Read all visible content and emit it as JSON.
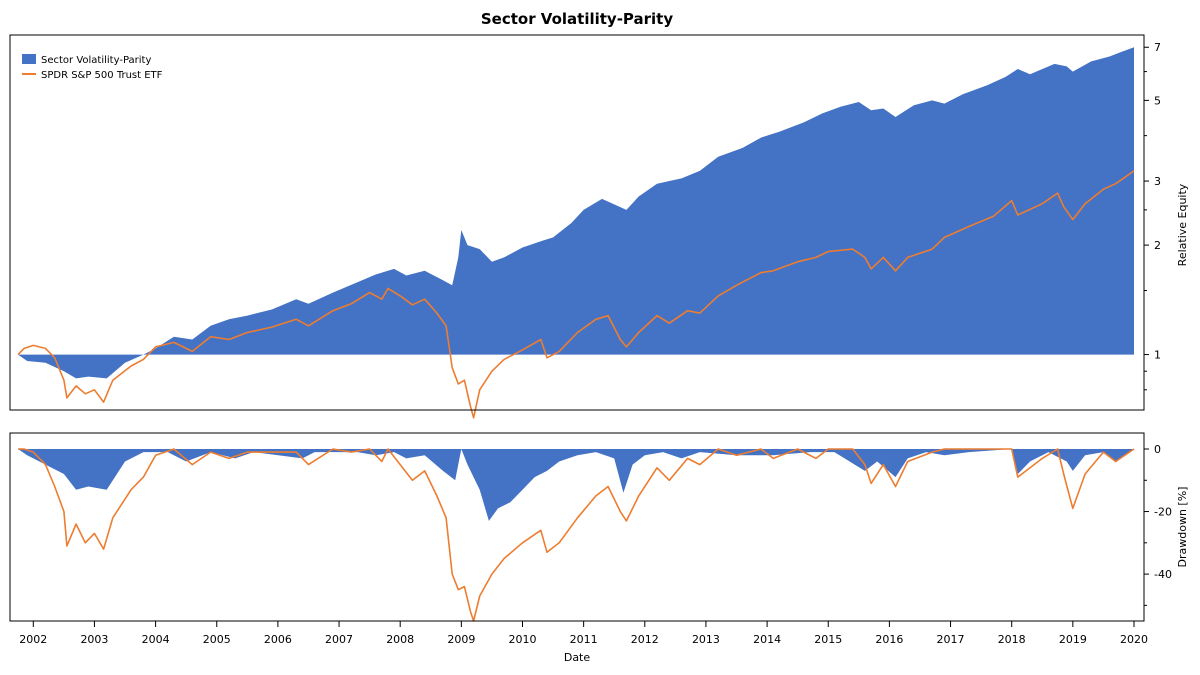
{
  "chart_data": {
    "type": "area",
    "title": "Sector Volatility-Parity",
    "xlabel": "Date",
    "x_ticks": [
      "2002",
      "2003",
      "2004",
      "2005",
      "2006",
      "2007",
      "2008",
      "2009",
      "2010",
      "2011",
      "2012",
      "2013",
      "2014",
      "2015",
      "2016",
      "2017",
      "2018",
      "2019",
      "2020"
    ],
    "x_range": [
      2001.75,
      2020.0
    ],
    "panels": [
      {
        "id": "equity",
        "ylabel": "Relative Equity",
        "yscale": "log",
        "ylim": [
          0.75,
          7.1
        ],
        "y_ticks": [
          "1",
          "2",
          "3",
          "5",
          "7"
        ],
        "baseline": 1
      },
      {
        "id": "drawdown",
        "ylabel": "Drawdown [%]",
        "yscale": "linear",
        "ylim": [
          -55,
          0
        ],
        "y_ticks": [
          "0",
          "-20",
          "-40"
        ],
        "baseline": 0
      }
    ],
    "legend": {
      "position": "top-left"
    },
    "series": [
      {
        "name": "Sector Volatility-Parity",
        "style": "area",
        "color": "#4472C4",
        "equity": [
          [
            2001.75,
            1.0
          ],
          [
            2001.9,
            0.96
          ],
          [
            2002.2,
            0.95
          ],
          [
            2002.5,
            0.9
          ],
          [
            2002.7,
            0.86
          ],
          [
            2002.9,
            0.87
          ],
          [
            2003.2,
            0.86
          ],
          [
            2003.5,
            0.95
          ],
          [
            2003.8,
            1.0
          ],
          [
            2004.0,
            1.04
          ],
          [
            2004.3,
            1.12
          ],
          [
            2004.6,
            1.1
          ],
          [
            2004.9,
            1.2
          ],
          [
            2005.2,
            1.25
          ],
          [
            2005.5,
            1.28
          ],
          [
            2005.9,
            1.33
          ],
          [
            2006.3,
            1.42
          ],
          [
            2006.5,
            1.38
          ],
          [
            2006.9,
            1.48
          ],
          [
            2007.3,
            1.58
          ],
          [
            2007.6,
            1.66
          ],
          [
            2007.9,
            1.72
          ],
          [
            2008.1,
            1.65
          ],
          [
            2008.4,
            1.7
          ],
          [
            2008.7,
            1.6
          ],
          [
            2008.85,
            1.55
          ],
          [
            2008.95,
            1.85
          ],
          [
            2009.0,
            2.2
          ],
          [
            2009.1,
            2.0
          ],
          [
            2009.3,
            1.95
          ],
          [
            2009.5,
            1.8
          ],
          [
            2009.7,
            1.85
          ],
          [
            2010.0,
            1.97
          ],
          [
            2010.3,
            2.05
          ],
          [
            2010.5,
            2.1
          ],
          [
            2010.8,
            2.3
          ],
          [
            2011.0,
            2.5
          ],
          [
            2011.3,
            2.68
          ],
          [
            2011.7,
            2.5
          ],
          [
            2011.9,
            2.72
          ],
          [
            2012.2,
            2.95
          ],
          [
            2012.6,
            3.05
          ],
          [
            2012.9,
            3.2
          ],
          [
            2013.2,
            3.5
          ],
          [
            2013.6,
            3.7
          ],
          [
            2013.9,
            3.95
          ],
          [
            2014.2,
            4.1
          ],
          [
            2014.6,
            4.35
          ],
          [
            2014.9,
            4.6
          ],
          [
            2015.2,
            4.8
          ],
          [
            2015.5,
            4.95
          ],
          [
            2015.7,
            4.7
          ],
          [
            2015.9,
            4.75
          ],
          [
            2016.1,
            4.5
          ],
          [
            2016.4,
            4.85
          ],
          [
            2016.7,
            5.0
          ],
          [
            2016.9,
            4.9
          ],
          [
            2017.2,
            5.2
          ],
          [
            2017.6,
            5.5
          ],
          [
            2017.9,
            5.8
          ],
          [
            2018.1,
            6.1
          ],
          [
            2018.3,
            5.9
          ],
          [
            2018.7,
            6.3
          ],
          [
            2018.9,
            6.2
          ],
          [
            2019.0,
            6.0
          ],
          [
            2019.3,
            6.4
          ],
          [
            2019.6,
            6.6
          ],
          [
            2019.8,
            6.8
          ],
          [
            2020.0,
            7.0
          ]
        ],
        "drawdown": [
          [
            2001.75,
            0
          ],
          [
            2001.9,
            -2
          ],
          [
            2002.2,
            -5
          ],
          [
            2002.5,
            -8
          ],
          [
            2002.7,
            -13
          ],
          [
            2002.9,
            -12
          ],
          [
            2003.2,
            -13
          ],
          [
            2003.5,
            -4
          ],
          [
            2003.8,
            -1
          ],
          [
            2004.2,
            -1
          ],
          [
            2004.5,
            -4
          ],
          [
            2004.9,
            -1
          ],
          [
            2005.3,
            -3
          ],
          [
            2005.6,
            -1
          ],
          [
            2006.4,
            -3
          ],
          [
            2006.6,
            -1
          ],
          [
            2007.3,
            -1
          ],
          [
            2007.6,
            -2
          ],
          [
            2007.9,
            -1
          ],
          [
            2008.1,
            -3
          ],
          [
            2008.4,
            -2
          ],
          [
            2008.7,
            -7
          ],
          [
            2008.9,
            -10
          ],
          [
            2009.0,
            0
          ],
          [
            2009.1,
            -5
          ],
          [
            2009.3,
            -13
          ],
          [
            2009.45,
            -23
          ],
          [
            2009.6,
            -19
          ],
          [
            2009.8,
            -17
          ],
          [
            2010.0,
            -13
          ],
          [
            2010.2,
            -9
          ],
          [
            2010.4,
            -7
          ],
          [
            2010.6,
            -4
          ],
          [
            2010.9,
            -2
          ],
          [
            2011.2,
            -1
          ],
          [
            2011.5,
            -3
          ],
          [
            2011.65,
            -14
          ],
          [
            2011.8,
            -5
          ],
          [
            2012.0,
            -2
          ],
          [
            2012.3,
            -1
          ],
          [
            2012.6,
            -3
          ],
          [
            2012.9,
            -1
          ],
          [
            2013.5,
            -2
          ],
          [
            2014.1,
            -2
          ],
          [
            2014.7,
            -1
          ],
          [
            2015.1,
            -1
          ],
          [
            2015.6,
            -7
          ],
          [
            2015.8,
            -4
          ],
          [
            2016.1,
            -9
          ],
          [
            2016.3,
            -3
          ],
          [
            2016.6,
            -1
          ],
          [
            2016.9,
            -2
          ],
          [
            2017.3,
            -1
          ],
          [
            2018.0,
            0
          ],
          [
            2018.1,
            -8
          ],
          [
            2018.3,
            -4
          ],
          [
            2018.6,
            -1
          ],
          [
            2018.9,
            -4
          ],
          [
            2019.0,
            -7
          ],
          [
            2019.2,
            -2
          ],
          [
            2019.5,
            -1
          ],
          [
            2019.7,
            -4
          ],
          [
            2020.0,
            0
          ]
        ]
      },
      {
        "name": "SPDR S&P 500 Trust ETF",
        "style": "line",
        "color": "#ED7D31",
        "equity": [
          [
            2001.75,
            1.0
          ],
          [
            2001.85,
            1.04
          ],
          [
            2002.0,
            1.06
          ],
          [
            2002.2,
            1.04
          ],
          [
            2002.35,
            0.98
          ],
          [
            2002.5,
            0.85
          ],
          [
            2002.55,
            0.76
          ],
          [
            2002.7,
            0.82
          ],
          [
            2002.85,
            0.78
          ],
          [
            2003.0,
            0.8
          ],
          [
            2003.15,
            0.74
          ],
          [
            2003.3,
            0.85
          ],
          [
            2003.6,
            0.93
          ],
          [
            2003.8,
            0.97
          ],
          [
            2004.0,
            1.05
          ],
          [
            2004.3,
            1.08
          ],
          [
            2004.6,
            1.02
          ],
          [
            2004.9,
            1.12
          ],
          [
            2005.2,
            1.1
          ],
          [
            2005.5,
            1.15
          ],
          [
            2005.9,
            1.19
          ],
          [
            2006.3,
            1.25
          ],
          [
            2006.5,
            1.2
          ],
          [
            2006.9,
            1.32
          ],
          [
            2007.2,
            1.38
          ],
          [
            2007.5,
            1.48
          ],
          [
            2007.7,
            1.42
          ],
          [
            2007.8,
            1.52
          ],
          [
            2008.0,
            1.45
          ],
          [
            2008.2,
            1.37
          ],
          [
            2008.4,
            1.42
          ],
          [
            2008.6,
            1.3
          ],
          [
            2008.75,
            1.2
          ],
          [
            2008.85,
            0.92
          ],
          [
            2008.95,
            0.83
          ],
          [
            2009.05,
            0.85
          ],
          [
            2009.15,
            0.72
          ],
          [
            2009.2,
            0.67
          ],
          [
            2009.3,
            0.8
          ],
          [
            2009.5,
            0.9
          ],
          [
            2009.7,
            0.97
          ],
          [
            2010.0,
            1.03
          ],
          [
            2010.3,
            1.1
          ],
          [
            2010.4,
            0.98
          ],
          [
            2010.6,
            1.02
          ],
          [
            2010.9,
            1.15
          ],
          [
            2011.2,
            1.25
          ],
          [
            2011.4,
            1.28
          ],
          [
            2011.6,
            1.1
          ],
          [
            2011.7,
            1.05
          ],
          [
            2011.9,
            1.15
          ],
          [
            2012.2,
            1.28
          ],
          [
            2012.4,
            1.22
          ],
          [
            2012.7,
            1.32
          ],
          [
            2012.9,
            1.3
          ],
          [
            2013.2,
            1.45
          ],
          [
            2013.5,
            1.55
          ],
          [
            2013.9,
            1.68
          ],
          [
            2014.1,
            1.7
          ],
          [
            2014.5,
            1.8
          ],
          [
            2014.8,
            1.85
          ],
          [
            2015.0,
            1.92
          ],
          [
            2015.4,
            1.95
          ],
          [
            2015.6,
            1.85
          ],
          [
            2015.7,
            1.72
          ],
          [
            2015.9,
            1.85
          ],
          [
            2016.1,
            1.7
          ],
          [
            2016.3,
            1.85
          ],
          [
            2016.7,
            1.95
          ],
          [
            2016.9,
            2.1
          ],
          [
            2017.3,
            2.25
          ],
          [
            2017.7,
            2.4
          ],
          [
            2018.0,
            2.65
          ],
          [
            2018.1,
            2.42
          ],
          [
            2018.5,
            2.6
          ],
          [
            2018.75,
            2.78
          ],
          [
            2018.85,
            2.55
          ],
          [
            2019.0,
            2.35
          ],
          [
            2019.2,
            2.6
          ],
          [
            2019.5,
            2.85
          ],
          [
            2019.7,
            2.95
          ],
          [
            2020.0,
            3.2
          ]
        ],
        "drawdown": [
          [
            2001.75,
            0
          ],
          [
            2001.85,
            0
          ],
          [
            2002.0,
            -1
          ],
          [
            2002.2,
            -5
          ],
          [
            2002.35,
            -12
          ],
          [
            2002.5,
            -20
          ],
          [
            2002.55,
            -31
          ],
          [
            2002.7,
            -24
          ],
          [
            2002.85,
            -30
          ],
          [
            2003.0,
            -27
          ],
          [
            2003.15,
            -32
          ],
          [
            2003.3,
            -22
          ],
          [
            2003.6,
            -13
          ],
          [
            2003.8,
            -9
          ],
          [
            2004.0,
            -2
          ],
          [
            2004.3,
            0
          ],
          [
            2004.6,
            -5
          ],
          [
            2004.9,
            -1
          ],
          [
            2005.2,
            -3
          ],
          [
            2005.5,
            -1
          ],
          [
            2006.3,
            -1
          ],
          [
            2006.5,
            -5
          ],
          [
            2006.9,
            0
          ],
          [
            2007.2,
            -1
          ],
          [
            2007.5,
            0
          ],
          [
            2007.7,
            -4
          ],
          [
            2007.8,
            0
          ],
          [
            2008.0,
            -5
          ],
          [
            2008.2,
            -10
          ],
          [
            2008.4,
            -7
          ],
          [
            2008.6,
            -15
          ],
          [
            2008.75,
            -22
          ],
          [
            2008.85,
            -40
          ],
          [
            2008.95,
            -45
          ],
          [
            2009.05,
            -44
          ],
          [
            2009.15,
            -52
          ],
          [
            2009.2,
            -55
          ],
          [
            2009.3,
            -47
          ],
          [
            2009.5,
            -40
          ],
          [
            2009.7,
            -35
          ],
          [
            2010.0,
            -30
          ],
          [
            2010.3,
            -26
          ],
          [
            2010.4,
            -33
          ],
          [
            2010.6,
            -30
          ],
          [
            2010.9,
            -22
          ],
          [
            2011.2,
            -15
          ],
          [
            2011.4,
            -12
          ],
          [
            2011.6,
            -20
          ],
          [
            2011.7,
            -23
          ],
          [
            2011.9,
            -15
          ],
          [
            2012.2,
            -6
          ],
          [
            2012.4,
            -10
          ],
          [
            2012.7,
            -3
          ],
          [
            2012.9,
            -5
          ],
          [
            2013.2,
            0
          ],
          [
            2013.5,
            -2
          ],
          [
            2013.9,
            0
          ],
          [
            2014.1,
            -3
          ],
          [
            2014.5,
            0
          ],
          [
            2014.8,
            -3
          ],
          [
            2015.0,
            0
          ],
          [
            2015.4,
            0
          ],
          [
            2015.6,
            -5
          ],
          [
            2015.7,
            -11
          ],
          [
            2015.9,
            -5
          ],
          [
            2016.1,
            -12
          ],
          [
            2016.3,
            -4
          ],
          [
            2016.7,
            -1
          ],
          [
            2016.9,
            0
          ],
          [
            2017.3,
            0
          ],
          [
            2017.7,
            0
          ],
          [
            2018.0,
            0
          ],
          [
            2018.1,
            -9
          ],
          [
            2018.5,
            -3
          ],
          [
            2018.75,
            0
          ],
          [
            2018.85,
            -8
          ],
          [
            2019.0,
            -19
          ],
          [
            2019.2,
            -8
          ],
          [
            2019.5,
            -1
          ],
          [
            2019.7,
            -4
          ],
          [
            2020.0,
            0
          ]
        ]
      }
    ]
  }
}
